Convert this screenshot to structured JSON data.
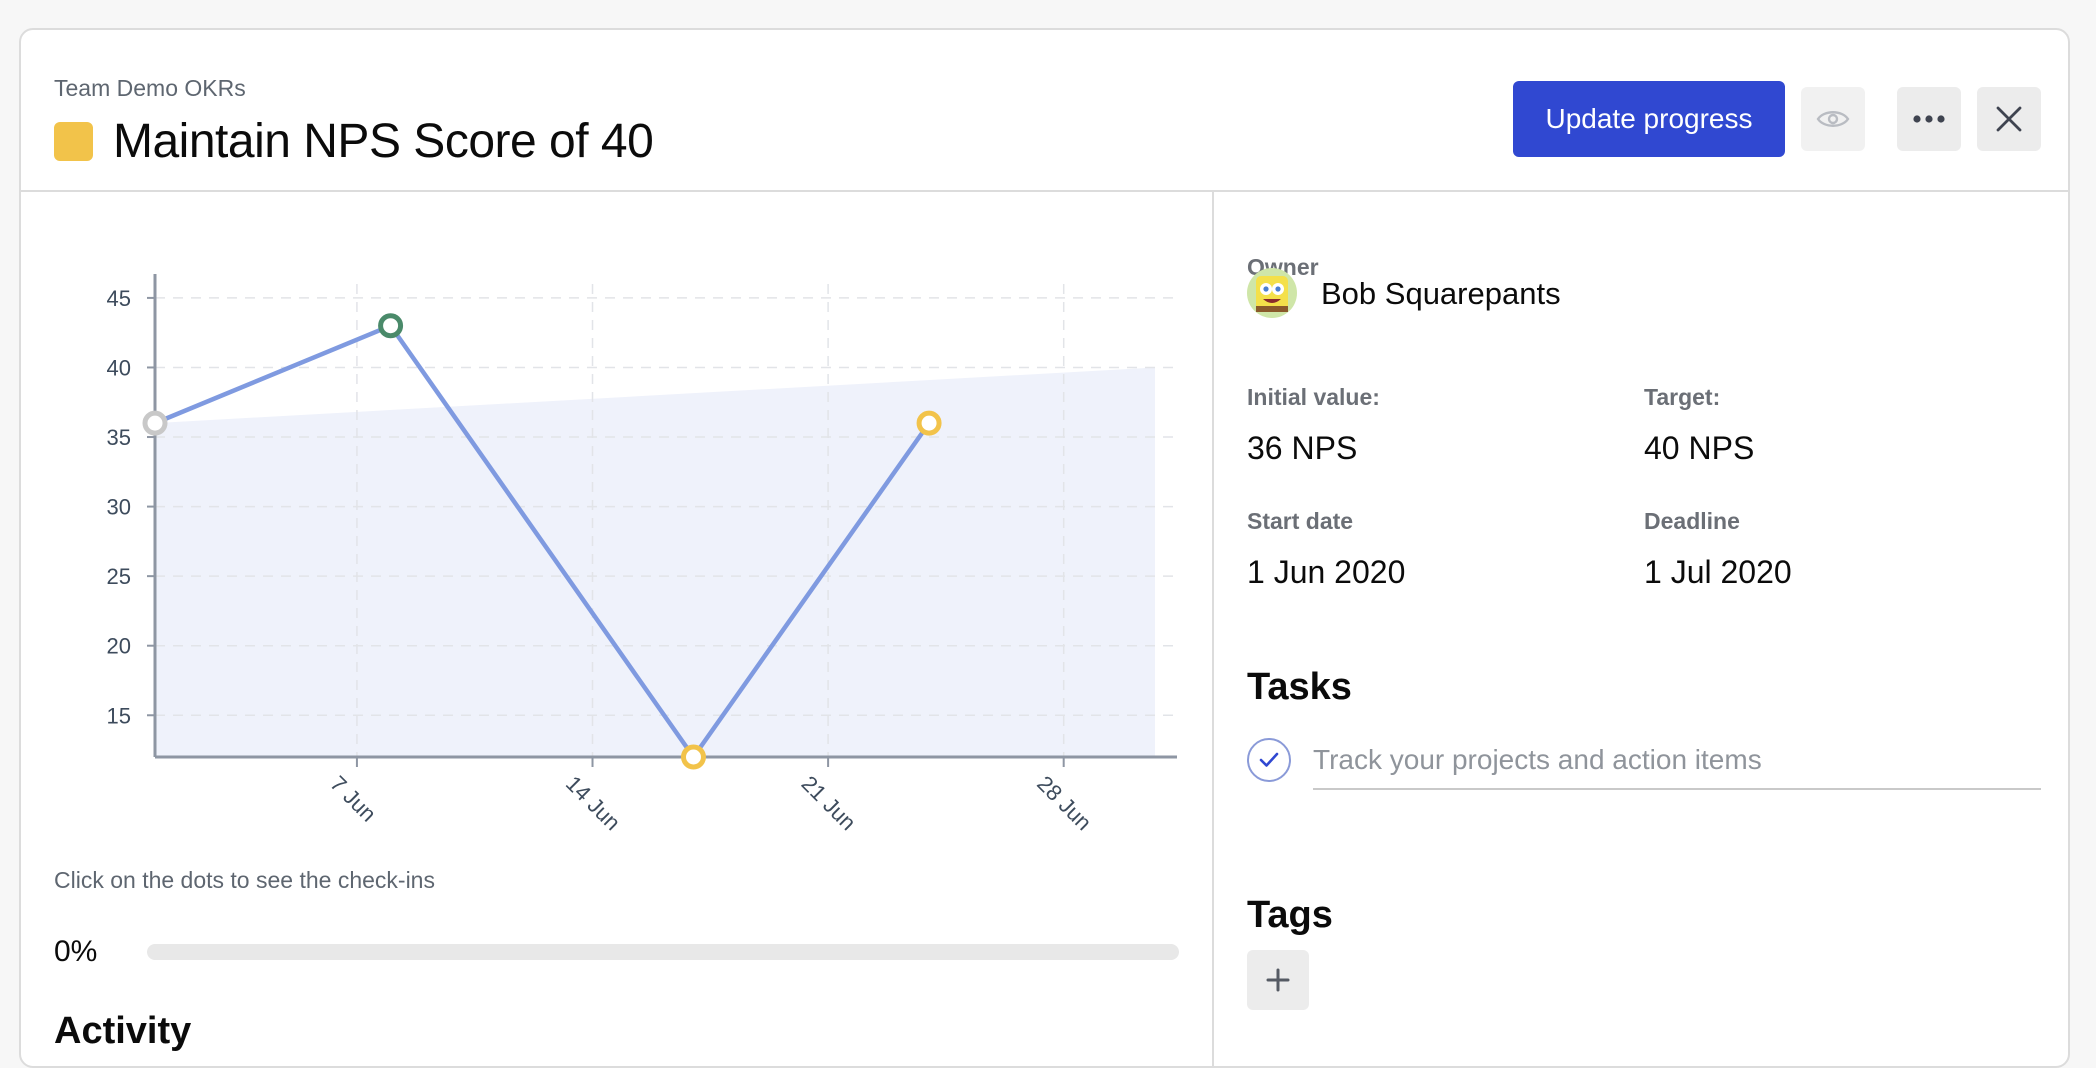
{
  "header": {
    "breadcrumb": "Team Demo OKRs",
    "title": "Maintain NPS Score of 40",
    "status_color": "#f2c34a",
    "update_label": "Update progress",
    "watch_icon": "eye-icon",
    "more_icon": "more-horizontal-icon",
    "close_icon": "close-icon",
    "accent_color": "#3048d1"
  },
  "chart_data": {
    "type": "line",
    "x_ticks": [
      "7 Jun",
      "14 Jun",
      "21 Jun",
      "28 Jun"
    ],
    "y_ticks": [
      15,
      20,
      25,
      30,
      35,
      40,
      45
    ],
    "ylim": [
      12,
      46
    ],
    "xlim": [
      "1 Jun 2020",
      "1 Jul 2020"
    ],
    "grid": true,
    "series": [
      {
        "points": [
          {
            "x": "1 Jun 2020",
            "y": 36,
            "color": "#c8c8c8"
          },
          {
            "x": "8 Jun 2020",
            "y": 43,
            "color": "#4a8a6a"
          },
          {
            "x": "17 Jun 2020",
            "y": 12,
            "color": "#f2c34a"
          },
          {
            "x": "24 Jun 2020",
            "y": 36,
            "color": "#f2c34a"
          }
        ],
        "line_color": "#7f9ae0"
      }
    ],
    "target_area": {
      "from": {
        "x": "1 Jun 2020",
        "y": 36
      },
      "to": {
        "x": "1 Jul 2020",
        "y": 40
      },
      "color": "#eff2fb"
    }
  },
  "chart_hint": "Click on the dots to see the check-ins",
  "progress": {
    "label": "0%",
    "value": 0
  },
  "activity_heading": "Activity",
  "details": {
    "owner_label": "Owner",
    "owner_name": "Bob Squarepants",
    "initial_label": "Initial value:",
    "initial_value": "36 NPS",
    "target_label": "Target:",
    "target_value": "40 NPS",
    "start_label": "Start date",
    "start_value": "1 Jun 2020",
    "deadline_label": "Deadline",
    "deadline_value": "1 Jul 2020"
  },
  "tasks": {
    "heading": "Tasks",
    "placeholder": "Track your projects and action items",
    "check_icon": "check-icon"
  },
  "tags": {
    "heading": "Tags",
    "add_icon": "plus-icon"
  }
}
